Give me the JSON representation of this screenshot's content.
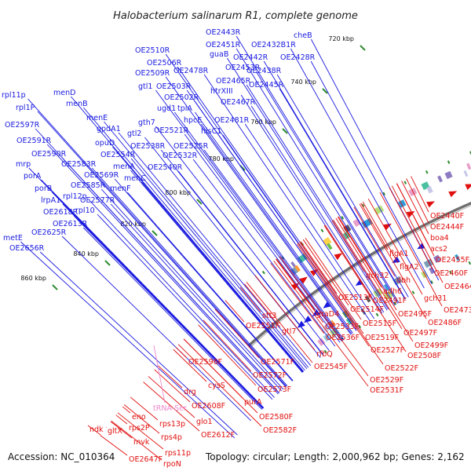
{
  "title": "Halobacterium salinarum R1, complete genome",
  "footer": {
    "accession": "Accession: NC_010364",
    "summary": "Topology: circular; Length: 2,000,962 bp; Genes: 2,162"
  },
  "colors": {
    "forward": "#e0100f",
    "reverse": "#1a1ae0",
    "rna": "#ee88cc",
    "backbone": "#777777",
    "tick": "#2e8b2e"
  },
  "ticks": [
    "720 kbp",
    "740 kbp",
    "760 kbp",
    "780 kbp",
    "800 kbp",
    "820 kbp",
    "840 kbp",
    "860 kbp"
  ],
  "reverse_labels": [
    "cheB",
    "OE2443R",
    "OE2451R",
    "OE2432B1R",
    "OE2428R",
    "guaB",
    "OE2442R",
    "OE2453R",
    "OE2438R",
    "OE2510R",
    "OE2506R",
    "OE2478R",
    "OE2509R",
    "htrXIII",
    "OE2465R",
    "OE2445R",
    "gtl1",
    "OE2503R",
    "OE2467R",
    "rpl11p",
    "menD",
    "OE2502R",
    "ugd1",
    "rpl1P",
    "menB",
    "tpiA",
    "OE2481R",
    "menE",
    "hpcE",
    "gth7",
    "gpdA1",
    "OE2597R",
    "OE2521R",
    "hisC1",
    "gtl2",
    "OE2591R",
    "opuD",
    "OE2538R",
    "OE2525R",
    "OE2590R",
    "OE2554R",
    "OE2532R",
    "mrp",
    "OE2583R",
    "menA",
    "OE2540R",
    "porA",
    "OE2569R",
    "menC",
    "OE2585R",
    "porB",
    "menF",
    "rpl12p",
    "lrpA1",
    "OE2577R",
    "rpl10",
    "OE2618R",
    "OE2613R",
    "OE2625R",
    "metE",
    "OE2656R"
  ],
  "forward_labels": [
    "OE2440F",
    "OE2444F",
    "boa4",
    "acs2",
    "OE2455F",
    "flgA1",
    "flgA2",
    "OE2460F",
    "dbh",
    "gch32",
    "OE2464F",
    "adh6",
    "gch31",
    "OE2473F",
    "OE2491F",
    "OE2513F",
    "OE2495F",
    "stt3",
    "OE2486F",
    "OE2514F",
    "OE2551F",
    "graD4",
    "OE2515F",
    "OE2497F",
    "gtl7",
    "OE2533F",
    "OE2519F",
    "OE2499F",
    "OE2536F",
    "OE2508F",
    "rfbQ",
    "OE2527F",
    "OE2545F",
    "OE2522F",
    "OE2529F",
    "OE2531F",
    "OE2571F",
    "OE2596F",
    "OE2572F",
    "cysS",
    "OE2573F",
    "drg",
    "purA",
    "OE2608F",
    "glo1",
    "OE2580F",
    "OE2582F",
    "rps13p",
    "OE2612F",
    "mvk",
    "rps4p",
    "rps11p",
    "rpoN",
    "rps2P",
    "eno",
    "gltX",
    "ndk",
    "OE2647F"
  ],
  "rna_labels": [
    "tRNA-Ser"
  ]
}
